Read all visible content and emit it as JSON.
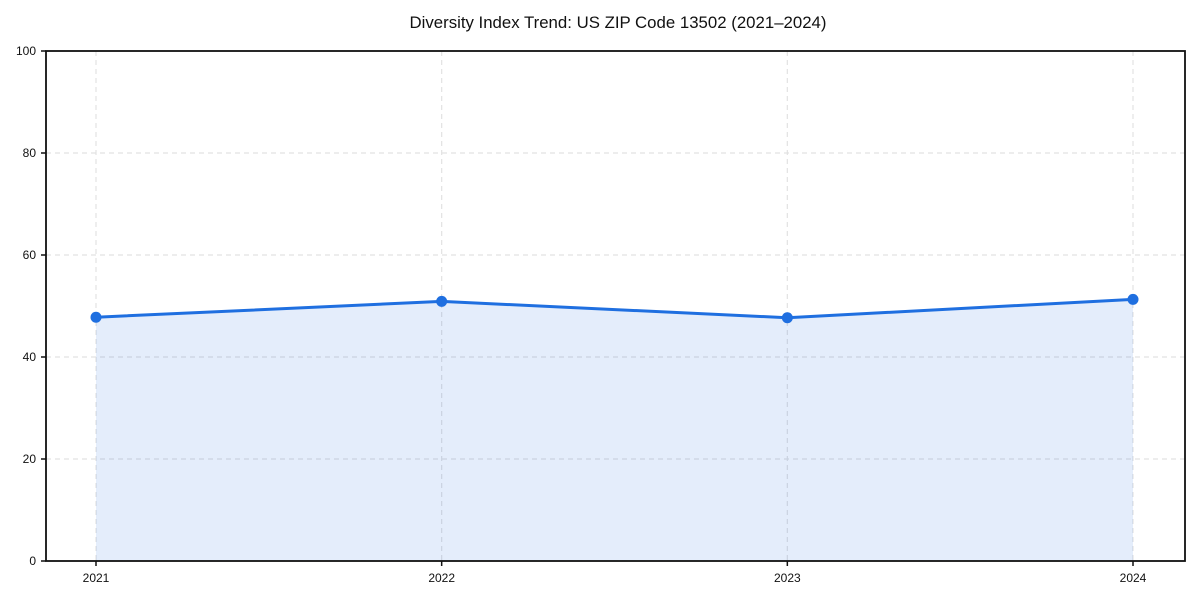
{
  "page": {
    "background": "#ffffff"
  },
  "chart_data": {
    "type": "line",
    "title": "Diversity Index Trend: US ZIP Code 13502 (2021–2024)",
    "x": [
      "2021",
      "2022",
      "2023",
      "2024"
    ],
    "series": [
      {
        "name": "Diversity Index",
        "values": [
          47.8,
          50.9,
          47.7,
          51.3
        ]
      }
    ],
    "xlabel": "",
    "ylabel": "",
    "ylim": [
      0,
      100
    ],
    "yticks": [
      0,
      20,
      40,
      60,
      80,
      100
    ],
    "grid": true,
    "grid_style": "dashed",
    "legend": "none",
    "area_fill": true,
    "markers": true
  },
  "colors": {
    "line": "#1f6fe0",
    "area_fill": "#1f6fe0",
    "area_fill_opacity": 0.12,
    "grid": "#e2e2e2",
    "axis": "#111111",
    "text": "#111111",
    "background": "#ffffff"
  }
}
